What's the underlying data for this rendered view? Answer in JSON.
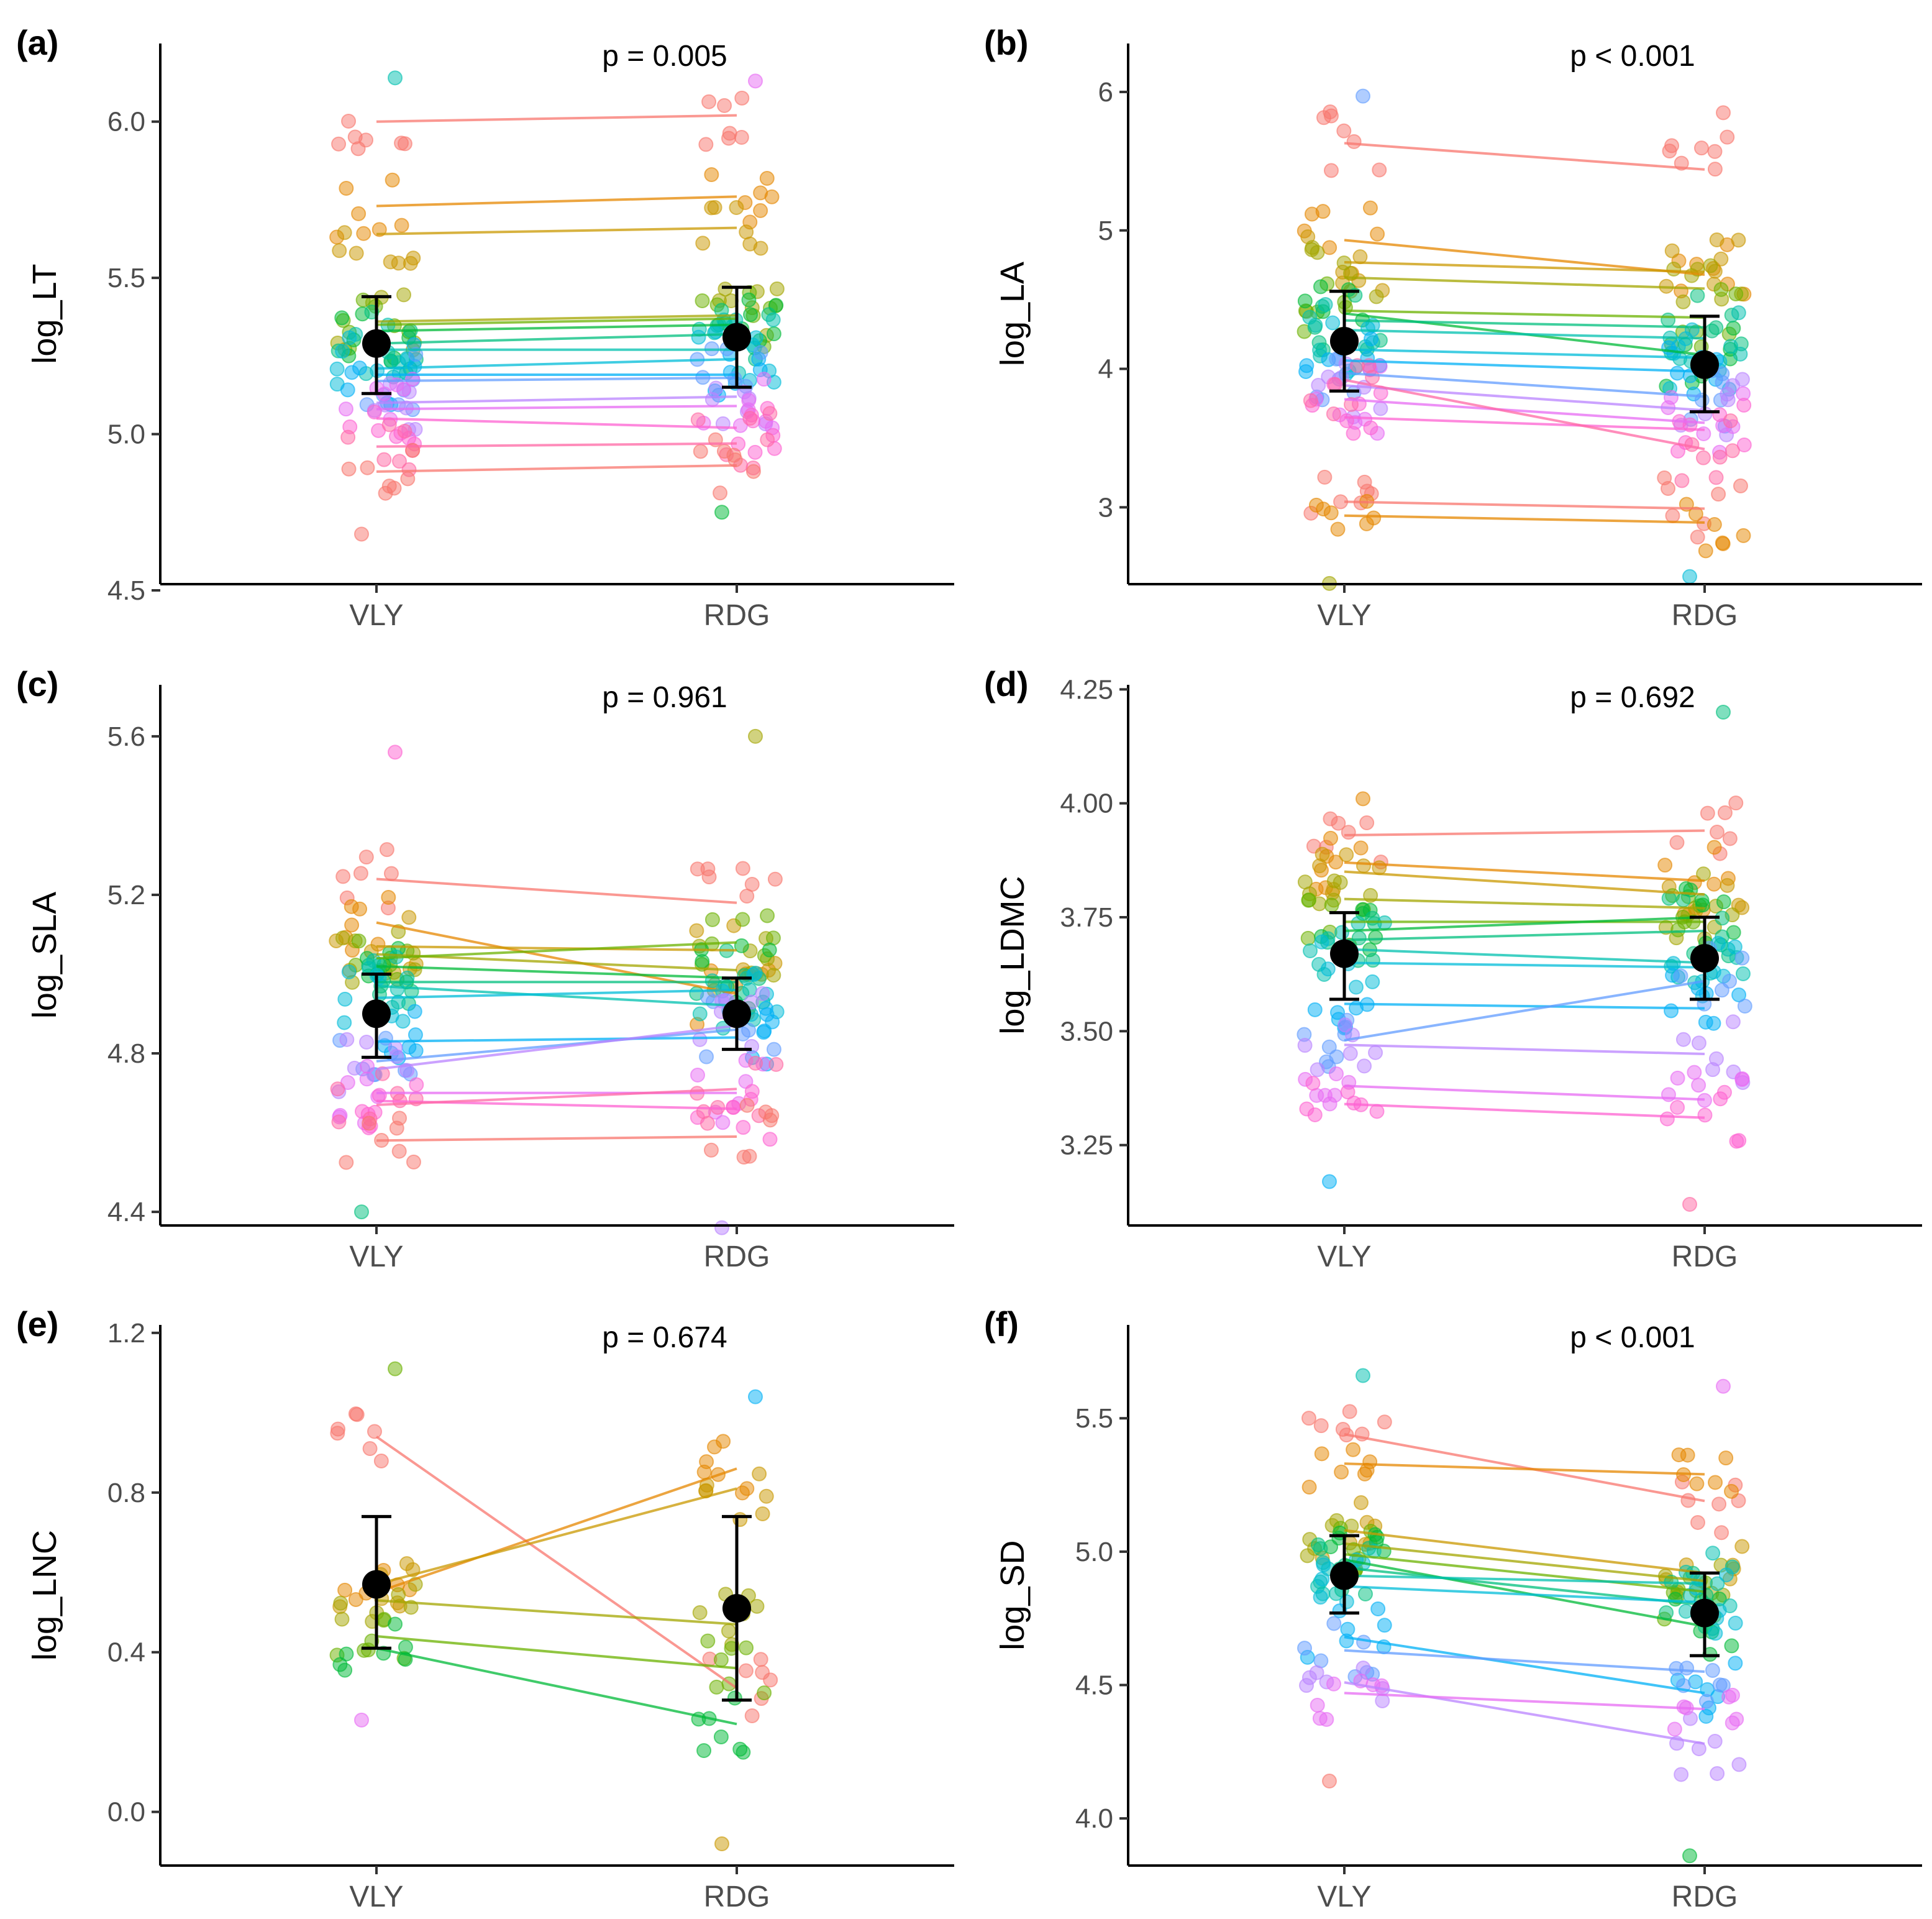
{
  "categories": [
    "VLY",
    "RDG"
  ],
  "chart_data": [
    {
      "type": "scatter",
      "panel": "(a)",
      "ylabel": "log_LT",
      "pvalue": "p = 0.005",
      "ylim": [
        4.5,
        6.25
      ],
      "yticks": [
        4.5,
        5.0,
        5.5,
        6.0
      ],
      "tick_labels": [
        "4.5",
        "5.0",
        "5.5",
        "6.0"
      ],
      "mean": [
        5.29,
        5.31
      ],
      "error": [
        [
          5.13,
          5.44
        ],
        [
          5.15,
          5.47
        ]
      ],
      "pairs": [
        [
          6.0,
          6.02
        ],
        [
          5.73,
          5.76
        ],
        [
          5.64,
          5.66
        ],
        [
          5.36,
          5.38
        ],
        [
          5.35,
          5.37
        ],
        [
          5.33,
          5.35
        ],
        [
          5.29,
          5.32
        ],
        [
          5.27,
          5.27
        ],
        [
          5.21,
          5.24
        ],
        [
          5.19,
          5.19
        ],
        [
          5.17,
          5.18
        ],
        [
          5.1,
          5.12
        ],
        [
          5.08,
          5.09
        ],
        [
          5.05,
          5.02
        ],
        [
          4.96,
          4.97
        ],
        [
          4.88,
          4.9
        ]
      ],
      "spread": [
        [
          4.68,
          6.14
        ],
        [
          4.75,
          6.13
        ]
      ]
    },
    {
      "type": "scatter",
      "panel": "(b)",
      "ylabel": "log_LA",
      "pvalue": "p < 0.001",
      "ylim": [
        2.4,
        6.35
      ],
      "yticks": [
        3,
        4,
        5,
        6
      ],
      "tick_labels": [
        "3",
        "4",
        "5",
        "6"
      ],
      "mean": [
        4.2,
        4.03
      ],
      "error": [
        [
          3.84,
          4.56
        ],
        [
          3.69,
          4.38
        ]
      ],
      "pairs": [
        [
          5.63,
          5.44
        ],
        [
          4.93,
          4.68
        ],
        [
          4.77,
          4.7
        ],
        [
          4.66,
          4.58
        ],
        [
          4.42,
          4.37
        ],
        [
          4.4,
          4.1
        ],
        [
          4.35,
          4.3
        ],
        [
          4.28,
          4.22
        ],
        [
          4.14,
          4.08
        ],
        [
          4.06,
          3.98
        ],
        [
          3.97,
          3.8
        ],
        [
          3.88,
          3.7
        ],
        [
          3.78,
          3.61
        ],
        [
          3.65,
          3.56
        ],
        [
          3.92,
          3.42
        ],
        [
          3.04,
          2.99
        ],
        [
          2.94,
          2.89
        ]
      ],
      "spread": [
        [
          2.45,
          5.97
        ],
        [
          2.5,
          5.85
        ]
      ]
    },
    {
      "type": "scatter",
      "panel": "(c)",
      "ylabel": "log_SLA",
      "pvalue": "p = 0.961",
      "ylim": [
        4.35,
        5.73
      ],
      "yticks": [
        4.4,
        4.8,
        5.2,
        5.6
      ],
      "tick_labels": [
        "4.4",
        "4.8",
        "5.2",
        "5.6"
      ],
      "mean": [
        4.9,
        4.9
      ],
      "error": [
        [
          4.79,
          5.0
        ],
        [
          4.81,
          4.99
        ]
      ],
      "pairs": [
        [
          5.24,
          5.18
        ],
        [
          5.13,
          4.95
        ],
        [
          5.07,
          5.06
        ],
        [
          5.05,
          5.01
        ],
        [
          5.04,
          5.08
        ],
        [
          5.02,
          4.99
        ],
        [
          4.98,
          4.98
        ],
        [
          4.97,
          4.92
        ],
        [
          4.94,
          4.96
        ],
        [
          4.83,
          4.84
        ],
        [
          4.78,
          4.86
        ],
        [
          4.76,
          4.87
        ],
        [
          4.7,
          4.7
        ],
        [
          4.68,
          4.66
        ],
        [
          4.67,
          4.71
        ],
        [
          4.58,
          4.59
        ]
      ],
      "spread": [
        [
          4.4,
          5.56
        ],
        [
          4.36,
          5.6
        ]
      ]
    },
    {
      "type": "scatter",
      "panel": "(d)",
      "ylabel": "log_LDMC",
      "pvalue": "p = 0.692",
      "ylim": [
        3.06,
        4.26
      ],
      "yticks": [
        3.25,
        3.5,
        3.75,
        4.0,
        4.25
      ],
      "tick_labels": [
        "3.25",
        "3.50",
        "3.75",
        "4.00",
        "4.25"
      ],
      "mean": [
        3.67,
        3.66
      ],
      "error": [
        [
          3.57,
          3.76
        ],
        [
          3.57,
          3.75
        ]
      ],
      "pairs": [
        [
          3.93,
          3.94
        ],
        [
          3.87,
          3.83
        ],
        [
          3.85,
          3.8
        ],
        [
          3.79,
          3.77
        ],
        [
          3.74,
          3.74
        ],
        [
          3.72,
          3.75
        ],
        [
          3.7,
          3.72
        ],
        [
          3.68,
          3.65
        ],
        [
          3.65,
          3.64
        ],
        [
          3.56,
          3.55
        ],
        [
          3.48,
          3.61
        ],
        [
          3.47,
          3.45
        ],
        [
          3.38,
          3.35
        ],
        [
          3.34,
          3.31
        ]
      ],
      "spread": [
        [
          3.17,
          4.01
        ],
        [
          3.12,
          4.2
        ]
      ]
    },
    {
      "type": "scatter",
      "panel": "(e)",
      "ylabel": "log_LNC",
      "pvalue": "p = 0.674",
      "ylim": [
        -0.15,
        1.22
      ],
      "yticks": [
        0.0,
        0.4,
        0.8,
        1.2
      ],
      "tick_labels": [
        "0.0",
        "0.4",
        "0.8",
        "1.2"
      ],
      "mean": [
        0.57,
        0.51
      ],
      "error": [
        [
          0.41,
          0.74
        ],
        [
          0.28,
          0.74
        ]
      ],
      "pairs": [
        [
          0.94,
          0.31
        ],
        [
          0.55,
          0.86
        ],
        [
          0.57,
          0.81
        ],
        [
          0.53,
          0.47
        ],
        [
          0.44,
          0.36
        ],
        [
          0.41,
          0.22
        ]
      ],
      "spread": [
        [
          0.23,
          1.11
        ],
        [
          -0.08,
          1.04
        ]
      ]
    },
    {
      "type": "scatter",
      "panel": "(f)",
      "ylabel": "log_SD",
      "pvalue": "p < 0.001",
      "ylim": [
        3.8,
        5.85
      ],
      "yticks": [
        4.0,
        4.5,
        5.0,
        5.5
      ],
      "tick_labels": [
        "4.0",
        "4.5",
        "5.0",
        "5.5"
      ],
      "mean": [
        4.91,
        4.77
      ],
      "error": [
        [
          4.77,
          5.06
        ],
        [
          4.61,
          4.92
        ]
      ],
      "pairs": [
        [
          5.44,
          5.19
        ],
        [
          5.33,
          5.29
        ],
        [
          5.08,
          4.92
        ],
        [
          5.03,
          4.89
        ],
        [
          4.99,
          4.85
        ],
        [
          4.97,
          4.72
        ],
        [
          4.94,
          4.8
        ],
        [
          4.91,
          4.88
        ],
        [
          4.87,
          4.81
        ],
        [
          4.68,
          4.47
        ],
        [
          4.63,
          4.55
        ],
        [
          4.51,
          4.28
        ],
        [
          4.47,
          4.41
        ]
      ],
      "spread": [
        [
          4.14,
          5.66
        ],
        [
          3.86,
          5.62
        ]
      ]
    }
  ]
}
